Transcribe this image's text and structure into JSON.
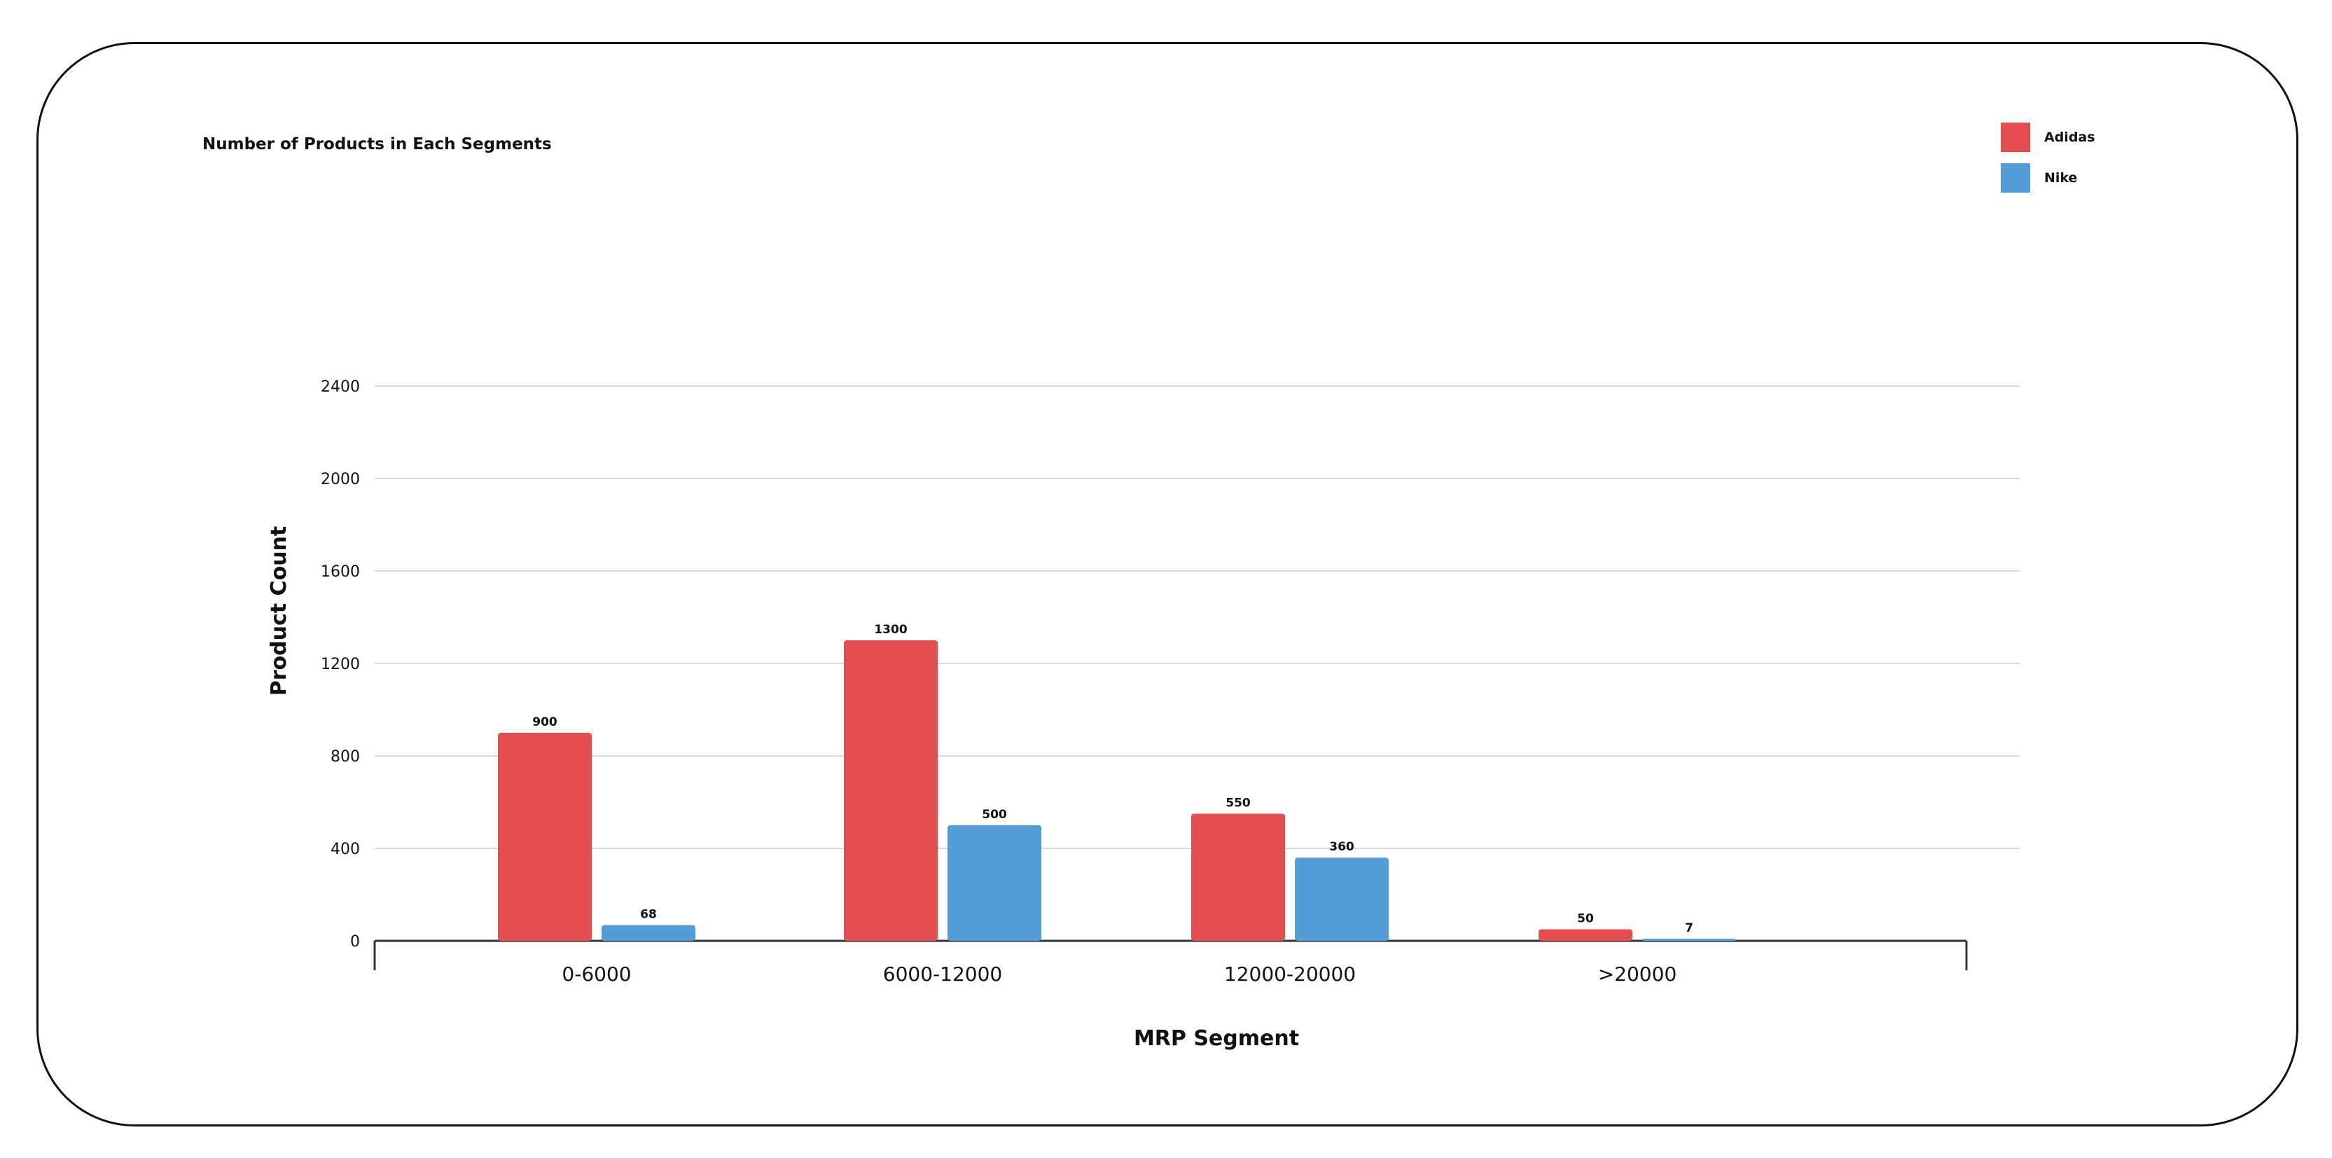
{
  "chart_data": {
    "type": "bar",
    "title": "Number of Products in Each Segments",
    "xlabel": "MRP Segment",
    "ylabel": "Product Count",
    "categories": [
      "0-6000",
      "6000-12000",
      "12000-20000",
      ">20000"
    ],
    "series": [
      {
        "name": "Adidas",
        "color": "#e54e51",
        "values": [
          900,
          1300,
          550,
          50
        ]
      },
      {
        "name": "Nike",
        "color": "#549dd6",
        "values": [
          68,
          500,
          360,
          7
        ]
      }
    ],
    "ylim": [
      0,
      2400
    ],
    "yticks": [
      0,
      400,
      800,
      1200,
      1600,
      2000,
      2400
    ],
    "grid": true,
    "legend_position": "top-right"
  }
}
